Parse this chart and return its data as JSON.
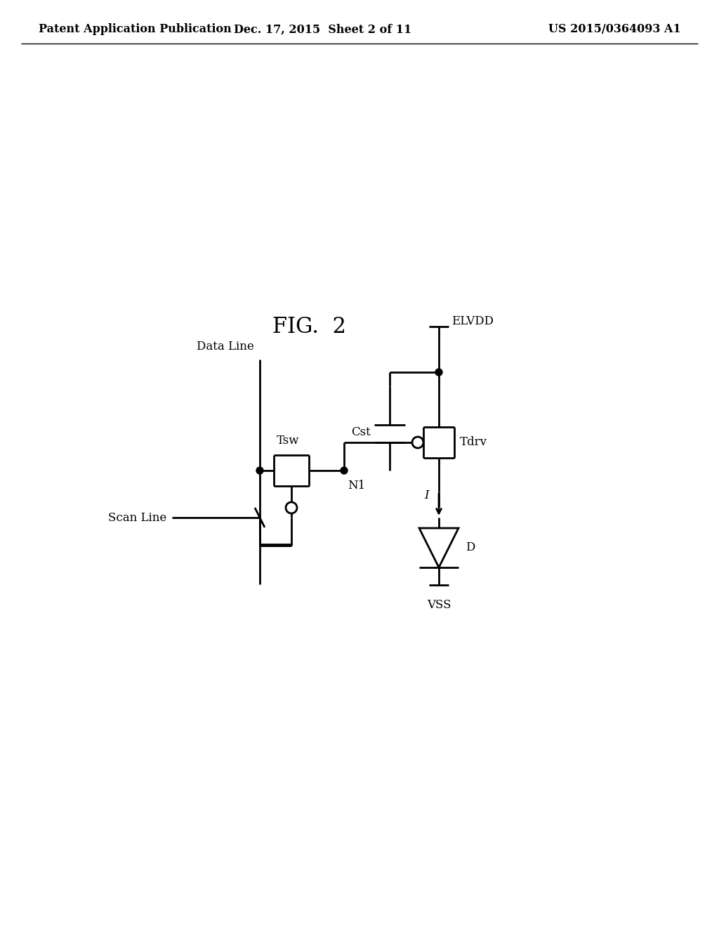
{
  "title": "FIG.  2",
  "header_left": "Patent Application Publication",
  "header_middle": "Dec. 17, 2015  Sheet 2 of 11",
  "header_right": "US 2015/0364093 A1",
  "bg_color": "#ffffff",
  "line_color": "#000000",
  "lw": 2.0,
  "fig_title_fontsize": 22,
  "header_fontsize": 11.5,
  "label_fontsize": 12
}
